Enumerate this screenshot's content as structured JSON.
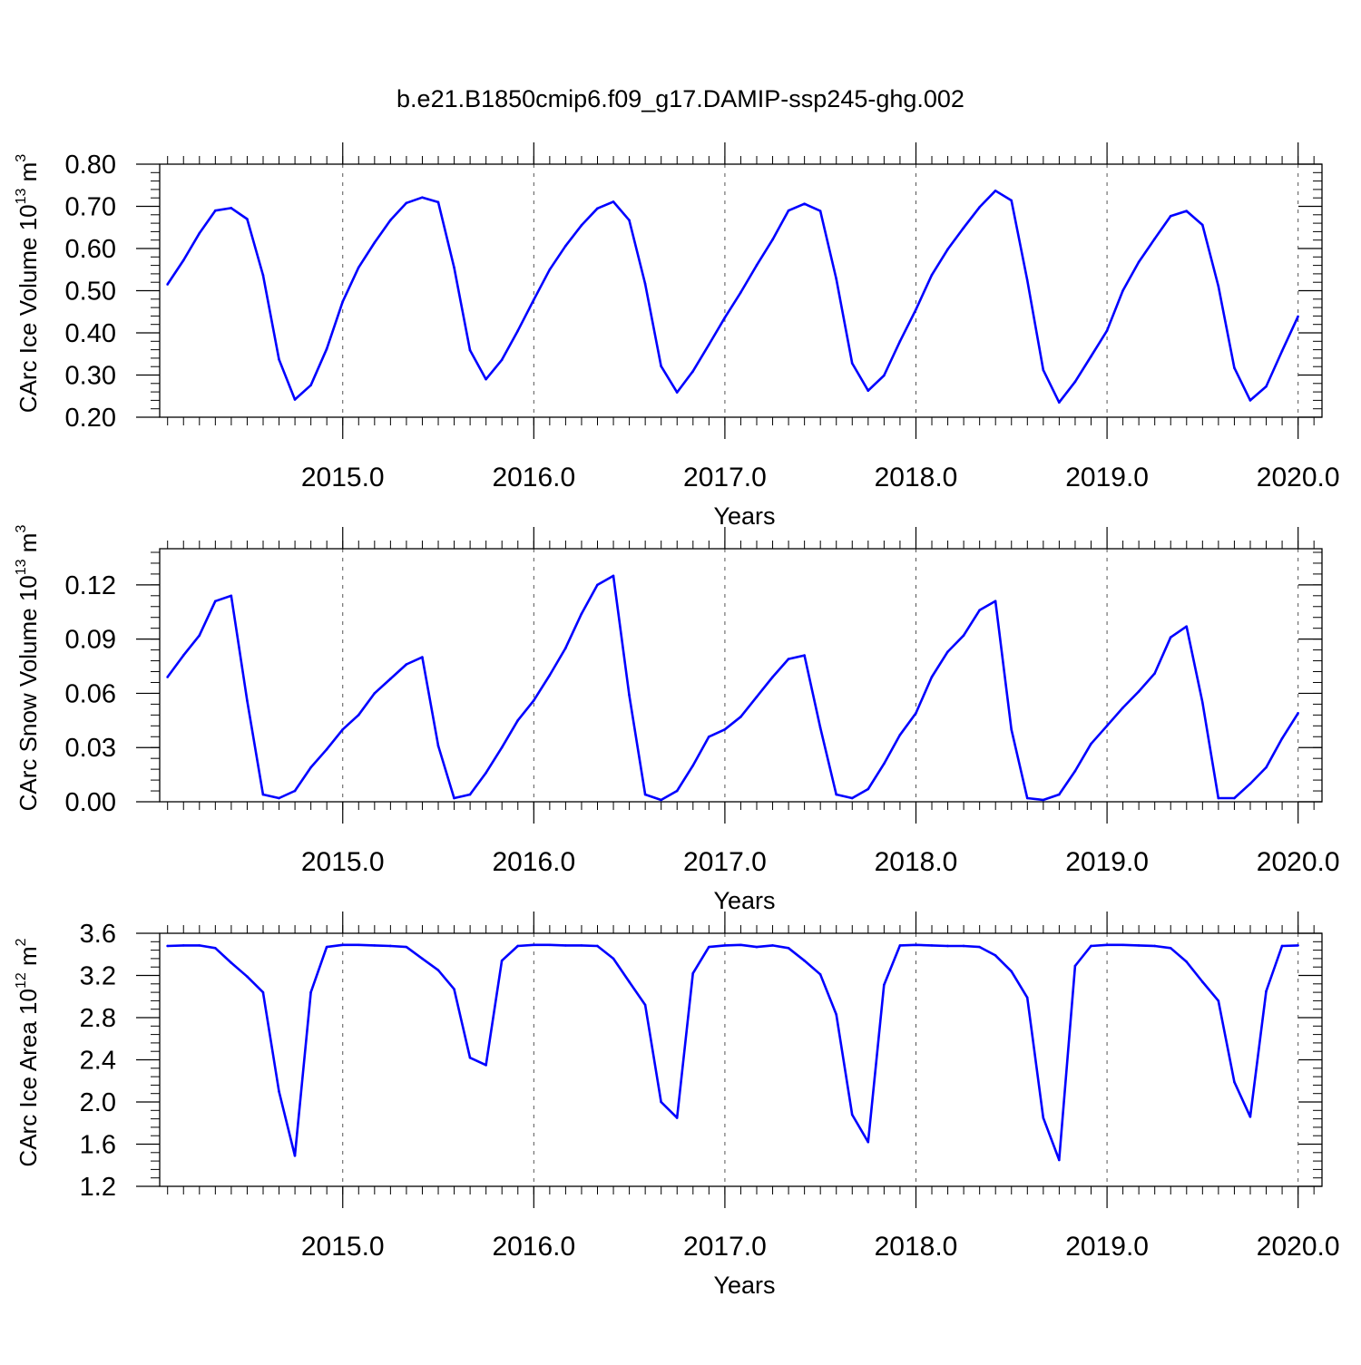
{
  "title": "b.e21.B1850cmip6.f09_g17.DAMIP-ssp245-ghg.002",
  "colors": {
    "series": "#0000ff",
    "axis": "#000000",
    "grid": "#555555"
  },
  "chart_data": [
    {
      "type": "line",
      "xlabel": "Years",
      "ylabel": {
        "prefix": "CArc Ice Volume 10",
        "exp": "13",
        "unit": " m",
        "unit_exp": "3"
      },
      "xlim": [
        2014.042,
        2020.125
      ],
      "ylim": [
        0.2,
        0.8
      ],
      "x_ticks": [
        2015,
        2016,
        2017,
        2018,
        2019,
        2020
      ],
      "x_tick_labels": [
        "2015.0",
        "2016.0",
        "2017.0",
        "2018.0",
        "2019.0",
        "2020.0"
      ],
      "y_ticks": [
        0.2,
        0.3,
        0.4,
        0.5,
        0.6,
        0.7,
        0.8
      ],
      "y_tick_labels": [
        "0.20",
        "0.30",
        "0.40",
        "0.50",
        "0.60",
        "0.70",
        "0.80"
      ],
      "y_minor_step": 0.02,
      "grid": "vertical dashed at major x ticks",
      "series": [
        {
          "x_start": 2014.083,
          "x_step": 0.08333,
          "values": [
            0.515,
            0.572,
            0.636,
            0.69,
            0.696,
            0.67,
            0.537,
            0.337,
            0.242,
            0.276,
            0.362,
            0.474,
            0.555,
            0.614,
            0.667,
            0.708,
            0.721,
            0.71,
            0.555,
            0.359,
            0.29,
            0.336,
            0.405,
            0.478,
            0.55,
            0.606,
            0.655,
            0.695,
            0.711,
            0.667,
            0.516,
            0.321,
            0.259,
            0.309,
            0.372,
            0.436,
            0.496,
            0.56,
            0.621,
            0.69,
            0.706,
            0.689,
            0.528,
            0.328,
            0.263,
            0.299,
            0.38,
            0.455,
            0.537,
            0.598,
            0.649,
            0.698,
            0.737,
            0.714,
            0.525,
            0.312,
            0.235,
            0.284,
            0.344,
            0.405,
            0.5,
            0.568,
            0.623,
            0.677,
            0.689,
            0.656,
            0.511,
            0.317,
            0.24,
            0.273,
            0.357,
            0.439
          ]
        }
      ]
    },
    {
      "type": "line",
      "xlabel": "Years",
      "ylabel": {
        "prefix": "CArc Snow Volume 10",
        "exp": "13",
        "unit": " m",
        "unit_exp": "3"
      },
      "xlim": [
        2014.042,
        2020.125
      ],
      "ylim": [
        0.0,
        0.14
      ],
      "x_ticks": [
        2015,
        2016,
        2017,
        2018,
        2019,
        2020
      ],
      "x_tick_labels": [
        "2015.0",
        "2016.0",
        "2017.0",
        "2018.0",
        "2019.0",
        "2020.0"
      ],
      "y_ticks": [
        0.0,
        0.03,
        0.06,
        0.09,
        0.12
      ],
      "y_tick_labels": [
        "0.00",
        "0.03",
        "0.06",
        "0.09",
        "0.12"
      ],
      "y_minor_step": 0.006,
      "grid": "vertical dashed at major x ticks",
      "series": [
        {
          "x_start": 2014.083,
          "x_step": 0.08333,
          "values": [
            0.069,
            0.081,
            0.092,
            0.111,
            0.114,
            0.056,
            0.004,
            0.002,
            0.006,
            0.019,
            0.029,
            0.04,
            0.048,
            0.06,
            0.068,
            0.076,
            0.08,
            0.031,
            0.002,
            0.004,
            0.016,
            0.03,
            0.045,
            0.056,
            0.07,
            0.085,
            0.104,
            0.12,
            0.125,
            0.059,
            0.004,
            0.001,
            0.006,
            0.02,
            0.036,
            0.04,
            0.047,
            0.058,
            0.069,
            0.079,
            0.081,
            0.041,
            0.004,
            0.002,
            0.007,
            0.021,
            0.037,
            0.049,
            0.069,
            0.083,
            0.092,
            0.106,
            0.111,
            0.04,
            0.002,
            0.001,
            0.004,
            0.017,
            0.032,
            0.042,
            0.052,
            0.061,
            0.071,
            0.091,
            0.097,
            0.055,
            0.002,
            0.002,
            0.01,
            0.019,
            0.035,
            0.049
          ]
        }
      ]
    },
    {
      "type": "line",
      "xlabel": "Years",
      "ylabel": {
        "prefix": "CArc Ice Area 10",
        "exp": "12",
        "unit": " m",
        "unit_exp": "2"
      },
      "xlim": [
        2014.042,
        2020.125
      ],
      "ylim": [
        1.2,
        3.6
      ],
      "x_ticks": [
        2015,
        2016,
        2017,
        2018,
        2019,
        2020
      ],
      "x_tick_labels": [
        "2015.0",
        "2016.0",
        "2017.0",
        "2018.0",
        "2019.0",
        "2020.0"
      ],
      "y_ticks": [
        1.2,
        1.6,
        2.0,
        2.4,
        2.8,
        3.2,
        3.6
      ],
      "y_tick_labels": [
        "1.2",
        "1.6",
        "2.0",
        "2.4",
        "2.8",
        "3.2",
        "3.6"
      ],
      "y_minor_step": 0.08,
      "grid": "vertical dashed at major x ticks",
      "series": [
        {
          "x_start": 2014.083,
          "x_step": 0.08333,
          "values": [
            3.48,
            3.485,
            3.485,
            3.46,
            3.32,
            3.19,
            3.04,
            2.1,
            1.49,
            3.04,
            3.47,
            3.49,
            3.49,
            3.485,
            3.48,
            3.47,
            3.36,
            3.25,
            3.07,
            2.42,
            2.35,
            3.34,
            3.48,
            3.49,
            3.49,
            3.485,
            3.485,
            3.48,
            3.36,
            3.14,
            2.92,
            2.0,
            1.85,
            3.22,
            3.47,
            3.485,
            3.49,
            3.47,
            3.485,
            3.46,
            3.34,
            3.21,
            2.83,
            1.88,
            1.62,
            3.11,
            3.485,
            3.49,
            3.485,
            3.48,
            3.48,
            3.47,
            3.39,
            3.24,
            2.99,
            1.85,
            1.45,
            3.29,
            3.48,
            3.49,
            3.49,
            3.485,
            3.48,
            3.46,
            3.33,
            3.14,
            2.96,
            2.19,
            1.86,
            3.05,
            3.48,
            3.485
          ]
        }
      ]
    }
  ]
}
